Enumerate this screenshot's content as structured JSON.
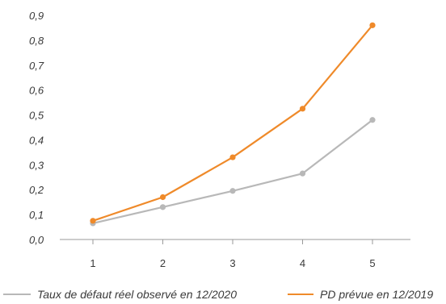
{
  "chart_data": {
    "type": "line",
    "categories": [
      "1",
      "2",
      "3",
      "4",
      "5"
    ],
    "ylim": [
      0,
      0.9
    ],
    "yticks": [
      "0,0",
      "0,1",
      "0,2",
      "0,3",
      "0,4",
      "0,5",
      "0,6",
      "0,7",
      "0,8",
      "0,9"
    ],
    "grid": false,
    "legend_position": "bottom",
    "series": [
      {
        "name": "Taux de défaut réel observé en 12/2020",
        "color": "#b8b8b8",
        "values": [
          0.065,
          0.13,
          0.195,
          0.265,
          0.48
        ]
      },
      {
        "name": "PD prévue en 12/2019",
        "color": "#ef8a2a",
        "values": [
          0.075,
          0.17,
          0.33,
          0.525,
          0.86
        ]
      }
    ]
  }
}
